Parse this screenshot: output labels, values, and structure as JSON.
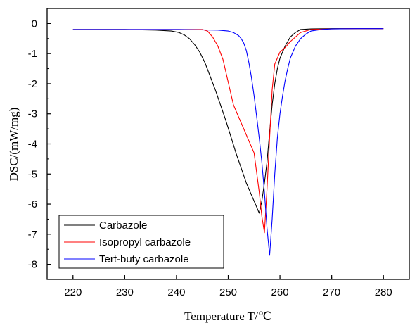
{
  "chart_data": {
    "type": "line",
    "xlabel": "Temperature T/℃",
    "ylabel": "DSC/(mW/mg)",
    "xlim": [
      215,
      285
    ],
    "ylim": [
      -8.5,
      0.5
    ],
    "xticks": [
      220,
      230,
      240,
      250,
      260,
      270,
      280
    ],
    "yticks": [
      0,
      -1,
      -2,
      -3,
      -4,
      -5,
      -6,
      -7,
      -8
    ],
    "grid": false,
    "legend_position": "bottom-left",
    "series": [
      {
        "name": "Carbazole",
        "color": "#000000",
        "x": [
          220,
          230,
          236,
          239,
          240.5,
          241.5,
          242.5,
          243.5,
          244.5,
          245.5,
          246.5,
          247.5,
          248.5,
          249.5,
          250.5,
          251.5,
          252.5,
          253.5,
          254.5,
          255.5,
          256,
          256.5,
          257,
          257.5,
          258,
          258.5,
          259,
          259.5,
          260,
          260.5,
          261,
          262,
          263,
          264,
          266,
          270,
          275,
          280
        ],
        "values": [
          -0.2,
          -0.2,
          -0.22,
          -0.25,
          -0.3,
          -0.38,
          -0.5,
          -0.7,
          -0.95,
          -1.3,
          -1.75,
          -2.2,
          -2.7,
          -3.2,
          -3.75,
          -4.3,
          -4.8,
          -5.3,
          -5.7,
          -6.1,
          -6.3,
          -5.9,
          -5.3,
          -4.6,
          -3.6,
          -2.7,
          -2.0,
          -1.5,
          -1.15,
          -0.95,
          -0.75,
          -0.45,
          -0.3,
          -0.2,
          -0.18,
          -0.17,
          -0.17,
          -0.17
        ]
      },
      {
        "name": "Isopropyl carbazole",
        "color": "#ff0000",
        "x": [
          220,
          240,
          245,
          246,
          247,
          248,
          249,
          250,
          251,
          252,
          253,
          254,
          255,
          256,
          256.5,
          257,
          257.5,
          258,
          258.5,
          259,
          260,
          261,
          262,
          263,
          264,
          266,
          270,
          275,
          280
        ],
        "values": [
          -0.2,
          -0.2,
          -0.2,
          -0.25,
          -0.45,
          -0.75,
          -1.2,
          -1.95,
          -2.7,
          -3.1,
          -3.5,
          -3.9,
          -4.3,
          -5.6,
          -6.4,
          -6.95,
          -5.5,
          -3.8,
          -2.2,
          -1.35,
          -0.95,
          -0.8,
          -0.6,
          -0.45,
          -0.3,
          -0.2,
          -0.18,
          -0.17,
          -0.17
        ]
      },
      {
        "name": "Tert-buty carbazole",
        "color": "#0000ff",
        "x": [
          220,
          240,
          248,
          250,
          251,
          252,
          252.5,
          253,
          253.5,
          254,
          254.5,
          255,
          255.5,
          256,
          256.5,
          257,
          257.5,
          258,
          258.5,
          259,
          259.5,
          260,
          260.5,
          261,
          261.5,
          262,
          263,
          264,
          265,
          266,
          268,
          270,
          275,
          280
        ],
        "values": [
          -0.2,
          -0.2,
          -0.22,
          -0.25,
          -0.3,
          -0.4,
          -0.5,
          -0.65,
          -0.9,
          -1.3,
          -1.8,
          -2.4,
          -3.1,
          -3.8,
          -4.6,
          -5.6,
          -6.8,
          -7.7,
          -6.5,
          -5.0,
          -3.8,
          -3.0,
          -2.4,
          -1.9,
          -1.5,
          -1.15,
          -0.75,
          -0.5,
          -0.35,
          -0.25,
          -0.2,
          -0.18,
          -0.17,
          -0.17
        ]
      }
    ]
  }
}
